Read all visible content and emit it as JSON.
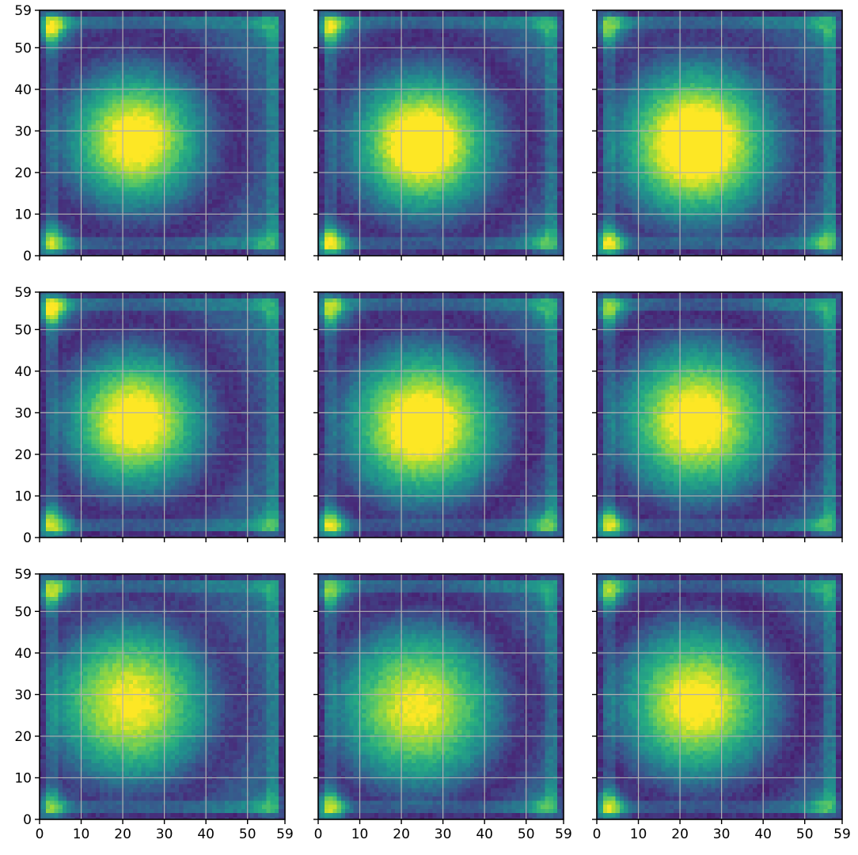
{
  "chart_data": {
    "type": "heatmap",
    "layout": {
      "rows": 3,
      "cols": 3,
      "sharex": true,
      "sharey": true
    },
    "colormap": "viridis",
    "grid": true,
    "grid_color": "#b0b0b0",
    "frame_color": "#000000",
    "resolution": [
      60,
      60
    ],
    "xlim": [
      0,
      59
    ],
    "ylim": [
      0,
      59
    ],
    "xticks": [
      0,
      10,
      20,
      30,
      40,
      50,
      59
    ],
    "yticks": [
      0,
      10,
      20,
      30,
      40,
      50,
      59
    ],
    "xtick_labels": [
      "0",
      "10",
      "20",
      "30",
      "40",
      "50",
      "59"
    ],
    "ytick_labels": [
      "0",
      "10",
      "20",
      "30",
      "40",
      "50",
      "59"
    ],
    "title": "",
    "xlabel": "",
    "ylabel": "",
    "panels": [
      {
        "center_peak": [
          23,
          28
        ],
        "center_sigma": 9.0,
        "center_amp": 0.8,
        "ring_radius": 24,
        "ring_depth": 0.55,
        "corners": {
          "top_left": 0.95,
          "bottom_left": 0.8,
          "bottom_right": 0.4,
          "top_right": 0.35
        }
      },
      {
        "center_peak": [
          25,
          27
        ],
        "center_sigma": 9.0,
        "center_amp": 0.92,
        "ring_radius": 25,
        "ring_depth": 0.55,
        "corners": {
          "top_left": 0.85,
          "bottom_left": 0.98,
          "bottom_right": 0.5,
          "top_right": 0.35
        }
      },
      {
        "center_peak": [
          24,
          27
        ],
        "center_sigma": 10.0,
        "center_amp": 0.95,
        "ring_radius": 26,
        "ring_depth": 0.5,
        "corners": {
          "top_left": 0.65,
          "bottom_left": 0.98,
          "bottom_right": 0.55,
          "top_right": 0.4
        }
      },
      {
        "center_peak": [
          23,
          28
        ],
        "center_sigma": 9.0,
        "center_amp": 0.82,
        "ring_radius": 24,
        "ring_depth": 0.55,
        "corners": {
          "top_left": 1.0,
          "bottom_left": 0.85,
          "bottom_right": 0.45,
          "top_right": 0.35
        }
      },
      {
        "center_peak": [
          25,
          27
        ],
        "center_sigma": 10.0,
        "center_amp": 0.85,
        "ring_radius": 26,
        "ring_depth": 0.6,
        "corners": {
          "top_left": 0.8,
          "bottom_left": 0.95,
          "bottom_right": 0.55,
          "top_right": 0.4
        }
      },
      {
        "center_peak": [
          24,
          28
        ],
        "center_sigma": 10.0,
        "center_amp": 0.8,
        "ring_radius": 26,
        "ring_depth": 0.6,
        "corners": {
          "top_left": 0.7,
          "bottom_left": 0.95,
          "bottom_right": 0.45,
          "top_right": 0.35
        }
      },
      {
        "center_peak": [
          22,
          28
        ],
        "center_sigma": 11.0,
        "center_amp": 0.7,
        "ring_radius": 25,
        "ring_depth": 0.55,
        "corners": {
          "top_left": 0.8,
          "bottom_left": 0.7,
          "bottom_right": 0.4,
          "top_right": 0.3
        }
      },
      {
        "center_peak": [
          24,
          27
        ],
        "center_sigma": 11.0,
        "center_amp": 0.68,
        "ring_radius": 26,
        "ring_depth": 0.6,
        "corners": {
          "top_left": 0.65,
          "bottom_left": 0.9,
          "bottom_right": 0.45,
          "top_right": 0.3
        }
      },
      {
        "center_peak": [
          24,
          28
        ],
        "center_sigma": 10.0,
        "center_amp": 0.75,
        "ring_radius": 26,
        "ring_depth": 0.6,
        "corners": {
          "top_left": 0.75,
          "bottom_left": 0.92,
          "bottom_right": 0.45,
          "top_right": 0.35
        }
      }
    ]
  }
}
